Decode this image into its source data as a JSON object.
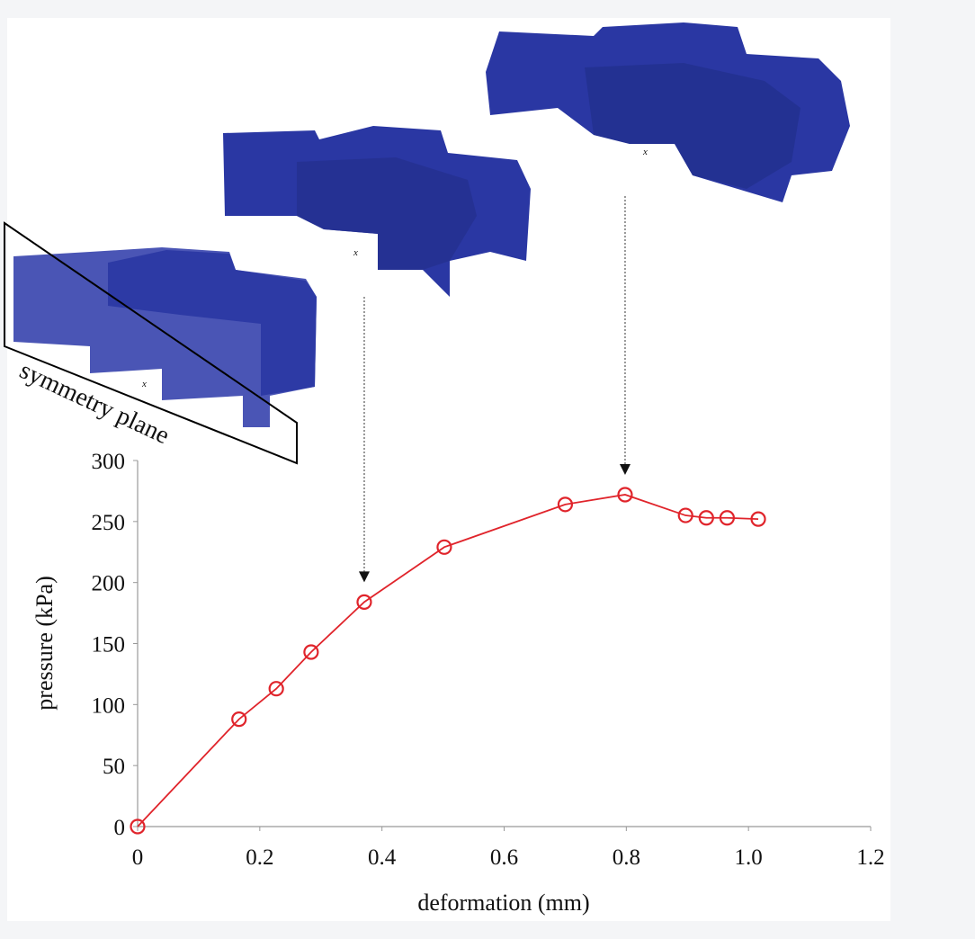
{
  "chart_data": {
    "type": "line",
    "xlabel": "deformation (mm)",
    "ylabel": "pressure (kPa)",
    "xlim": [
      0,
      1.2
    ],
    "ylim": [
      0,
      300
    ],
    "x_ticks": [
      "0",
      "0.2",
      "0.4",
      "0.6",
      "0.8",
      "1.0",
      "1.2"
    ],
    "y_ticks": [
      "0",
      "50",
      "100",
      "150",
      "200",
      "250",
      "300"
    ],
    "grid": false,
    "series": [
      {
        "color": "#e0242b",
        "marker": "open-circle",
        "x": [
          0,
          0.166,
          0.227,
          0.284,
          0.371,
          0.502,
          0.7,
          0.798,
          0.897,
          0.931,
          0.965,
          1.016
        ],
        "y": [
          0,
          88,
          113,
          143,
          184,
          229,
          264,
          272,
          255,
          253,
          253,
          252
        ]
      }
    ],
    "annotations": [
      {
        "text": "symmetry plane"
      },
      {
        "arrow_to_x": 0.371,
        "label": "deformed mesh at ~0.37 mm"
      },
      {
        "arrow_to_x": 0.798,
        "label": "deformed mesh at ~0.8 mm"
      }
    ],
    "axis_glyph": "x"
  },
  "colors": {
    "mesh": "#2a37a3",
    "plane": "#5560b8",
    "line": "#e0242b"
  }
}
